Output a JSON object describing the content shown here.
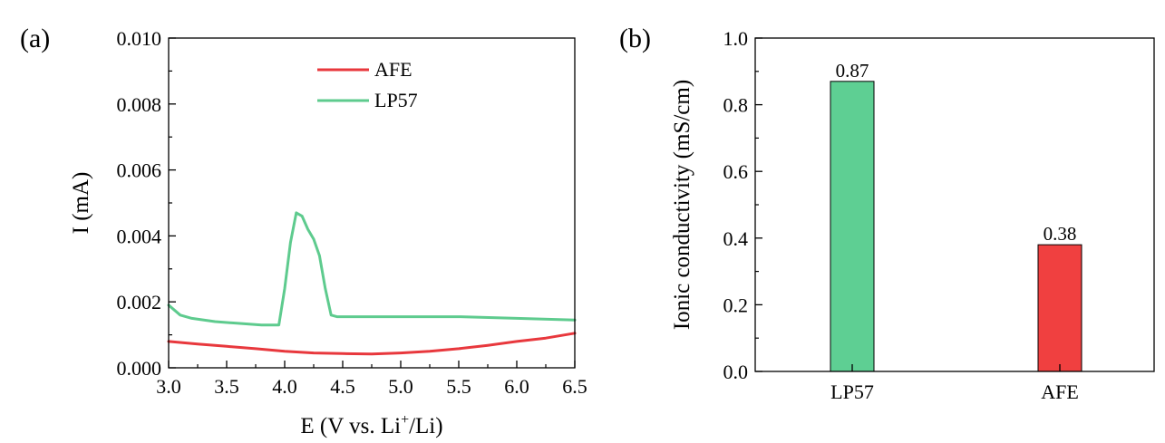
{
  "chart_data": [
    {
      "panel_label": "(a)",
      "type": "line",
      "xlabel_main": "E (V vs. Li",
      "xlabel_sup": "+",
      "xlabel_tail": "/Li)",
      "ylabel": "I (mA)",
      "xlim": [
        3.0,
        6.5
      ],
      "ylim": [
        0.0,
        0.01
      ],
      "x_ticks": [
        "3.0",
        "3.5",
        "4.0",
        "4.5",
        "5.0",
        "5.5",
        "6.0",
        "6.5"
      ],
      "y_ticks": [
        "0.000",
        "0.002",
        "0.004",
        "0.006",
        "0.008",
        "0.010"
      ],
      "legend": [
        "AFE",
        "LP57"
      ],
      "series": [
        {
          "name": "AFE",
          "color": "#e8383d",
          "x": [
            3.0,
            3.25,
            3.5,
            3.75,
            4.0,
            4.25,
            4.5,
            4.75,
            5.0,
            5.25,
            5.5,
            5.75,
            6.0,
            6.25,
            6.5
          ],
          "y": [
            0.0008,
            0.00072,
            0.00065,
            0.00058,
            0.0005,
            0.00045,
            0.00043,
            0.00042,
            0.00045,
            0.0005,
            0.00058,
            0.00068,
            0.0008,
            0.0009,
            0.00105
          ]
        },
        {
          "name": "LP57",
          "color": "#5ecb8e",
          "x": [
            3.0,
            3.1,
            3.2,
            3.4,
            3.6,
            3.8,
            3.95,
            4.0,
            4.05,
            4.1,
            4.15,
            4.2,
            4.25,
            4.3,
            4.35,
            4.4,
            4.45,
            4.6,
            5.0,
            5.5,
            6.0,
            6.5
          ],
          "y": [
            0.0019,
            0.0016,
            0.0015,
            0.0014,
            0.00135,
            0.0013,
            0.0013,
            0.0024,
            0.0038,
            0.0047,
            0.0046,
            0.0042,
            0.0039,
            0.0034,
            0.0024,
            0.0016,
            0.00155,
            0.00155,
            0.00155,
            0.00155,
            0.0015,
            0.00145
          ]
        }
      ]
    },
    {
      "panel_label": "(b)",
      "type": "bar",
      "ylabel": "Ionic conductivity (mS/cm)",
      "ylim": [
        0.0,
        1.0
      ],
      "y_ticks": [
        "0.0",
        "0.2",
        "0.4",
        "0.6",
        "0.8",
        "1.0"
      ],
      "categories": [
        "LP57",
        "AFE"
      ],
      "values": [
        0.87,
        0.38
      ],
      "value_labels": [
        "0.87",
        "0.38"
      ],
      "colors": [
        "#5ecf93",
        "#f04040"
      ]
    }
  ]
}
